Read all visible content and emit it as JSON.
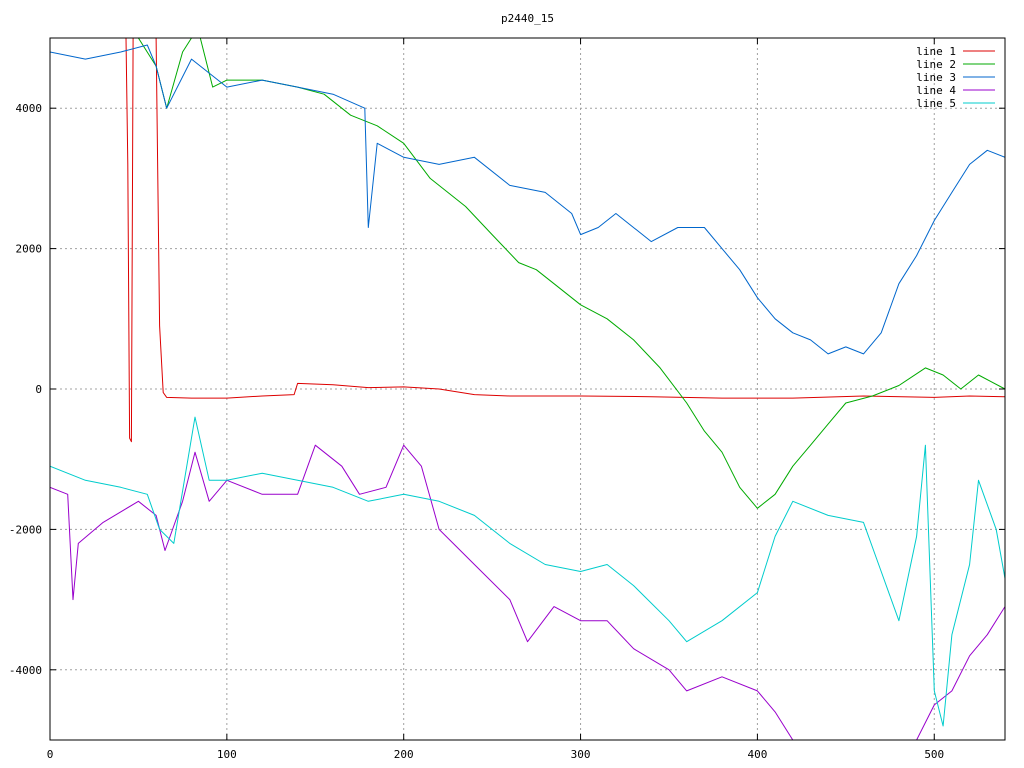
{
  "chart_data": {
    "type": "line",
    "title": "p2440_15",
    "xlabel": "",
    "ylabel": "",
    "xlim": [
      0,
      540
    ],
    "ylim": [
      -5000,
      5000
    ],
    "x_ticks": [
      0,
      100,
      200,
      300,
      400,
      500
    ],
    "y_ticks": [
      -4000,
      -2000,
      0,
      2000,
      4000
    ],
    "x_tick_labels": [
      "0",
      "100",
      "200",
      "300",
      "400",
      "500"
    ],
    "y_tick_labels": [
      "-4000",
      "-2000",
      "0",
      "2000",
      "4000"
    ],
    "grid": true,
    "legend_position": "top-right",
    "series": [
      {
        "name": "line 1",
        "color": "#dd0000",
        "points": [
          [
            0,
            5000
          ],
          [
            43,
            5000
          ],
          [
            44,
            3200
          ],
          [
            45,
            -700
          ],
          [
            46,
            -750
          ],
          [
            47,
            5000
          ],
          [
            60,
            5000
          ],
          [
            62,
            900
          ],
          [
            64,
            -50
          ],
          [
            66,
            -120
          ],
          [
            80,
            -130
          ],
          [
            100,
            -130
          ],
          [
            120,
            -100
          ],
          [
            138,
            -80
          ],
          [
            140,
            80
          ],
          [
            160,
            60
          ],
          [
            180,
            20
          ],
          [
            200,
            30
          ],
          [
            220,
            0
          ],
          [
            240,
            -80
          ],
          [
            260,
            -100
          ],
          [
            300,
            -100
          ],
          [
            340,
            -110
          ],
          [
            380,
            -130
          ],
          [
            420,
            -130
          ],
          [
            460,
            -100
          ],
          [
            500,
            -120
          ],
          [
            520,
            -100
          ],
          [
            540,
            -110
          ]
        ]
      },
      {
        "name": "line 2",
        "color": "#00aa00",
        "points": [
          [
            0,
            5000
          ],
          [
            30,
            5000
          ],
          [
            50,
            5000
          ],
          [
            60,
            4600
          ],
          [
            66,
            4000
          ],
          [
            75,
            4800
          ],
          [
            80,
            5000
          ],
          [
            85,
            5000
          ],
          [
            92,
            4300
          ],
          [
            100,
            4400
          ],
          [
            120,
            4400
          ],
          [
            140,
            4300
          ],
          [
            155,
            4200
          ],
          [
            170,
            3900
          ],
          [
            185,
            3750
          ],
          [
            200,
            3500
          ],
          [
            215,
            3000
          ],
          [
            235,
            2600
          ],
          [
            250,
            2200
          ],
          [
            265,
            1800
          ],
          [
            275,
            1700
          ],
          [
            285,
            1500
          ],
          [
            300,
            1200
          ],
          [
            315,
            1000
          ],
          [
            330,
            700
          ],
          [
            345,
            300
          ],
          [
            360,
            -200
          ],
          [
            370,
            -600
          ],
          [
            380,
            -900
          ],
          [
            390,
            -1400
          ],
          [
            400,
            -1700
          ],
          [
            410,
            -1500
          ],
          [
            420,
            -1100
          ],
          [
            430,
            -800
          ],
          [
            440,
            -500
          ],
          [
            450,
            -200
          ],
          [
            465,
            -100
          ],
          [
            480,
            50
          ],
          [
            495,
            300
          ],
          [
            505,
            200
          ],
          [
            515,
            0
          ],
          [
            525,
            200
          ],
          [
            540,
            0
          ]
        ]
      },
      {
        "name": "line 3",
        "color": "#0066cc",
        "points": [
          [
            0,
            4800
          ],
          [
            20,
            4700
          ],
          [
            40,
            4800
          ],
          [
            55,
            4900
          ],
          [
            60,
            4600
          ],
          [
            66,
            4000
          ],
          [
            80,
            4700
          ],
          [
            100,
            4300
          ],
          [
            120,
            4400
          ],
          [
            140,
            4300
          ],
          [
            160,
            4200
          ],
          [
            178,
            4000
          ],
          [
            180,
            2300
          ],
          [
            185,
            3500
          ],
          [
            200,
            3300
          ],
          [
            220,
            3200
          ],
          [
            240,
            3300
          ],
          [
            260,
            2900
          ],
          [
            280,
            2800
          ],
          [
            295,
            2500
          ],
          [
            300,
            2200
          ],
          [
            310,
            2300
          ],
          [
            320,
            2500
          ],
          [
            340,
            2100
          ],
          [
            355,
            2300
          ],
          [
            370,
            2300
          ],
          [
            380,
            2000
          ],
          [
            390,
            1700
          ],
          [
            400,
            1300
          ],
          [
            410,
            1000
          ],
          [
            420,
            800
          ],
          [
            430,
            700
          ],
          [
            440,
            500
          ],
          [
            450,
            600
          ],
          [
            460,
            500
          ],
          [
            470,
            800
          ],
          [
            480,
            1500
          ],
          [
            490,
            1900
          ],
          [
            500,
            2400
          ],
          [
            510,
            2800
          ],
          [
            520,
            3200
          ],
          [
            530,
            3400
          ],
          [
            540,
            3300
          ]
        ]
      },
      {
        "name": "line 4",
        "color": "#9900cc",
        "points": [
          [
            0,
            -1400
          ],
          [
            10,
            -1500
          ],
          [
            13,
            -3000
          ],
          [
            16,
            -2200
          ],
          [
            30,
            -1900
          ],
          [
            50,
            -1600
          ],
          [
            60,
            -1800
          ],
          [
            65,
            -2300
          ],
          [
            75,
            -1600
          ],
          [
            82,
            -900
          ],
          [
            90,
            -1600
          ],
          [
            100,
            -1300
          ],
          [
            120,
            -1500
          ],
          [
            140,
            -1500
          ],
          [
            150,
            -800
          ],
          [
            165,
            -1100
          ],
          [
            175,
            -1500
          ],
          [
            190,
            -1400
          ],
          [
            200,
            -800
          ],
          [
            210,
            -1100
          ],
          [
            220,
            -2000
          ],
          [
            240,
            -2500
          ],
          [
            260,
            -3000
          ],
          [
            270,
            -3600
          ],
          [
            285,
            -3100
          ],
          [
            300,
            -3300
          ],
          [
            315,
            -3300
          ],
          [
            330,
            -3700
          ],
          [
            350,
            -4000
          ],
          [
            360,
            -4300
          ],
          [
            380,
            -4100
          ],
          [
            400,
            -4300
          ],
          [
            410,
            -4600
          ],
          [
            420,
            -5000
          ],
          [
            440,
            -5000
          ],
          [
            460,
            -5000
          ],
          [
            490,
            -5000
          ],
          [
            500,
            -4500
          ],
          [
            510,
            -4300
          ],
          [
            520,
            -3800
          ],
          [
            530,
            -3500
          ],
          [
            540,
            -3100
          ]
        ]
      },
      {
        "name": "line 5",
        "color": "#00cccc",
        "points": [
          [
            0,
            -1100
          ],
          [
            20,
            -1300
          ],
          [
            40,
            -1400
          ],
          [
            55,
            -1500
          ],
          [
            62,
            -2000
          ],
          [
            70,
            -2200
          ],
          [
            82,
            -400
          ],
          [
            90,
            -1300
          ],
          [
            100,
            -1300
          ],
          [
            120,
            -1200
          ],
          [
            140,
            -1300
          ],
          [
            160,
            -1400
          ],
          [
            180,
            -1600
          ],
          [
            200,
            -1500
          ],
          [
            220,
            -1600
          ],
          [
            240,
            -1800
          ],
          [
            260,
            -2200
          ],
          [
            280,
            -2500
          ],
          [
            300,
            -2600
          ],
          [
            315,
            -2500
          ],
          [
            330,
            -2800
          ],
          [
            350,
            -3300
          ],
          [
            360,
            -3600
          ],
          [
            380,
            -3300
          ],
          [
            400,
            -2900
          ],
          [
            410,
            -2100
          ],
          [
            420,
            -1600
          ],
          [
            440,
            -1800
          ],
          [
            460,
            -1900
          ],
          [
            470,
            -2600
          ],
          [
            480,
            -3300
          ],
          [
            490,
            -2100
          ],
          [
            495,
            -800
          ],
          [
            500,
            -4300
          ],
          [
            505,
            -4800
          ],
          [
            510,
            -3500
          ],
          [
            520,
            -2500
          ],
          [
            525,
            -1300
          ],
          [
            535,
            -2000
          ],
          [
            540,
            -2700
          ]
        ]
      }
    ]
  }
}
